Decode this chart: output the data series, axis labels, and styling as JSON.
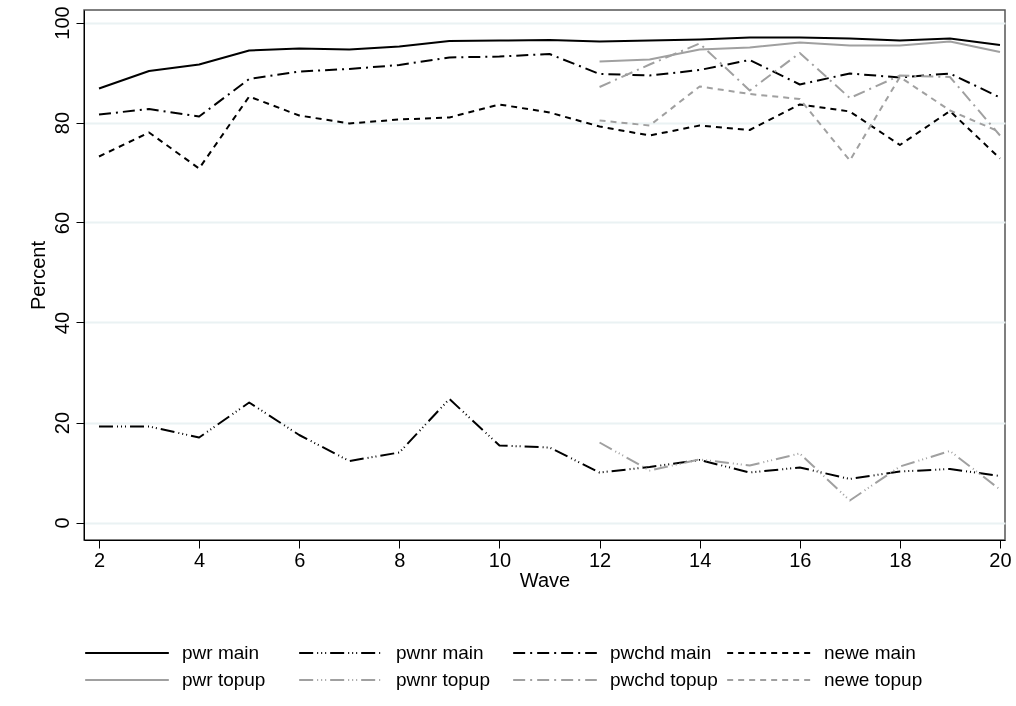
{
  "chart_data": {
    "type": "line",
    "xlabel": "Wave",
    "ylabel": "Percent",
    "xlim": [
      1.7,
      20.1
    ],
    "ylim": [
      -3.5,
      102.5
    ],
    "xticks": [
      2,
      4,
      6,
      8,
      10,
      12,
      14,
      16,
      18,
      20
    ],
    "yticks": [
      0,
      20,
      40,
      60,
      80,
      100
    ],
    "grid": "y",
    "legend": "bottom",
    "marker": "none",
    "x": [
      2,
      3,
      4,
      5,
      6,
      7,
      8,
      9,
      10,
      11,
      12,
      13,
      14,
      15,
      16,
      17,
      18,
      19,
      20
    ],
    "series": [
      {
        "name": "pwr main",
        "color": "#000000",
        "line_style": "solid",
        "values": [
          86.8,
          90.3,
          91.6,
          94.4,
          94.8,
          94.6,
          95.2,
          96.3,
          96.4,
          96.5,
          96.2,
          96.4,
          96.6,
          97,
          97,
          96.8,
          96.4,
          96.8,
          95.5
        ]
      },
      {
        "name": "pwnr main",
        "color": "#000000",
        "line_style": "dashdotdot",
        "values": [
          19.2,
          19.2,
          17,
          24,
          17.5,
          12.3,
          14,
          24.7,
          15.4,
          15,
          10,
          11.1,
          12.5,
          10,
          11,
          8.7,
          10.2,
          10.7,
          9.3
        ]
      },
      {
        "name": "pwchd main",
        "color": "#000000",
        "line_style": "dashdot",
        "values": [
          81.6,
          82.7,
          81.2,
          88.7,
          90.2,
          90.7,
          91.5,
          93,
          93.2,
          93.7,
          89.7,
          89.4,
          90.5,
          92.5,
          87.6,
          89.8,
          89,
          89.8,
          85
        ]
      },
      {
        "name": "newe main",
        "color": "#000000",
        "line_style": "dashed",
        "values": [
          73.2,
          78,
          70.8,
          85.2,
          81.4,
          79.8,
          80.6,
          81,
          83.6,
          82,
          79.2,
          77.4,
          79.4,
          78.5,
          83.6,
          82.2,
          75.5,
          82.3,
          72.8
        ]
      },
      {
        "name": "pwr topup",
        "color": "#a0a0a0",
        "line_style": "solid",
        "x": [
          12,
          13,
          14,
          15,
          16,
          17,
          18,
          19,
          20
        ],
        "values": [
          92.2,
          92.6,
          94.6,
          95,
          96,
          95.4,
          95.4,
          96.2,
          94.1
        ]
      },
      {
        "name": "pwnr topup",
        "color": "#a0a0a0",
        "line_style": "dashdotdot",
        "x": [
          12,
          13,
          14,
          15,
          16,
          17,
          18,
          19,
          20
        ],
        "values": [
          16,
          10.4,
          12.6,
          11.4,
          13.8,
          4.4,
          11.2,
          14.3,
          6.6
        ]
      },
      {
        "name": "pwchd topup",
        "color": "#a0a0a0",
        "line_style": "dashdot",
        "x": [
          12,
          13,
          14,
          15,
          16,
          17,
          18,
          19,
          20
        ],
        "values": [
          87.1,
          91.6,
          95.8,
          86.4,
          93.9,
          84.9,
          89.4,
          89.1,
          77.4
        ]
      },
      {
        "name": "newe topup",
        "color": "#a0a0a0",
        "line_style": "dashed",
        "x": [
          12,
          13,
          14,
          15,
          16,
          17,
          18,
          19,
          20
        ],
        "values": [
          80.4,
          79.4,
          87.2,
          85.7,
          84.7,
          72.4,
          89.1,
          82.4,
          78.1
        ]
      }
    ]
  }
}
